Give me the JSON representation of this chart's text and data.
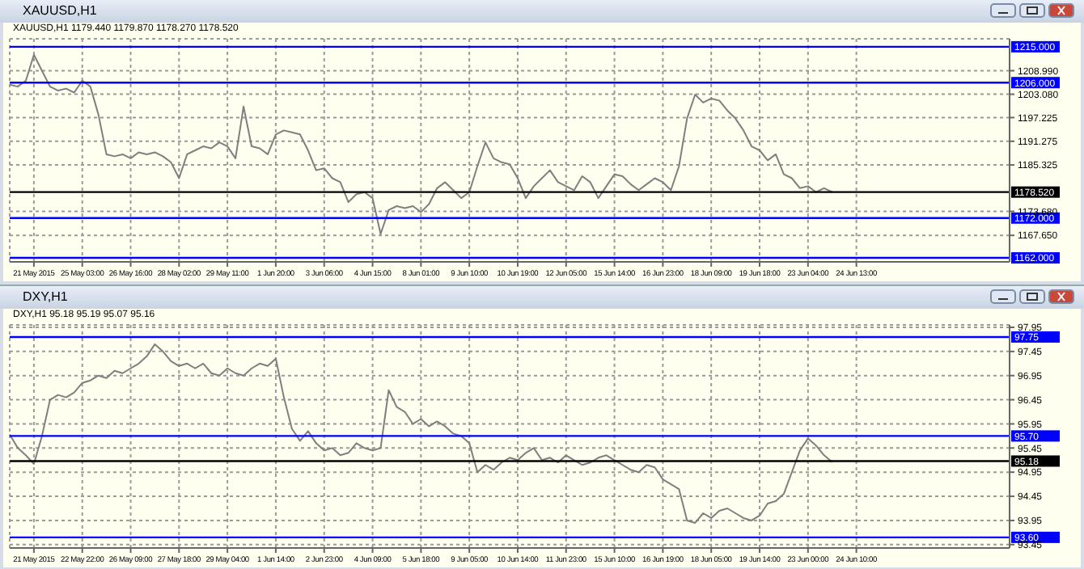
{
  "chart_data": [
    {
      "type": "line",
      "title": "XAUUSD,H1",
      "subtitle": "XAUUSD,H1 1179.440 1179.870 1178.270 1178.520",
      "categories": [
        null,
        null,
        null,
        "21 May 2015",
        null,
        null,
        null,
        null,
        null,
        "25 May 03:00",
        null,
        null,
        null,
        null,
        null,
        "26 May 16:00",
        null,
        null,
        null,
        null,
        null,
        "28 May 02:00",
        null,
        null,
        null,
        null,
        null,
        "29 May 11:00",
        null,
        null,
        null,
        null,
        null,
        "1 Jun 20:00",
        null,
        null,
        null,
        null,
        null,
        "3 Jun 06:00",
        null,
        null,
        null,
        null,
        null,
        "4 Jun 15:00",
        null,
        null,
        null,
        null,
        null,
        "8 Jun 01:00",
        null,
        null,
        null,
        null,
        null,
        "9 Jun 10:00",
        null,
        null,
        null,
        null,
        null,
        "10 Jun 19:00",
        null,
        null,
        null,
        null,
        null,
        "12 Jun 05:00",
        null,
        null,
        null,
        null,
        null,
        "15 Jun 14:00",
        null,
        null,
        null,
        null,
        null,
        "16 Jun 23:00",
        null,
        null,
        null,
        null,
        null,
        "18 Jun 09:00",
        null,
        null,
        null,
        null,
        null,
        "19 Jun 18:00",
        null,
        null,
        null,
        null,
        null,
        "23 Jun 04:00",
        null,
        null,
        null,
        null,
        null,
        "24 Jun 13:00",
        null,
        null,
        null,
        null,
        null,
        null,
        null,
        null,
        null,
        null,
        null,
        null,
        null,
        null,
        null,
        null,
        null,
        null,
        null
      ],
      "values": [
        1205.5,
        1205,
        1206.5,
        1213,
        1209,
        1205,
        1204,
        1204.5,
        1203.5,
        1206.5,
        1205,
        1198,
        1188,
        1187.5,
        1188,
        1187,
        1188.5,
        1188,
        1188.5,
        1187.5,
        1186,
        1182,
        1188,
        1189,
        1190,
        1189.5,
        1191,
        1190,
        1187,
        1200,
        1190,
        1189.5,
        1188,
        1193,
        1194,
        1193.5,
        1193,
        1189,
        1184,
        1184.5,
        1182,
        1181,
        1176,
        1178,
        1178.5,
        1177,
        1168,
        1174,
        1175,
        1174.5,
        1175,
        1173.5,
        1175.5,
        1179.5,
        1181,
        1179,
        1177,
        1178.5,
        1185,
        1191,
        1187,
        1186,
        1185.5,
        1182,
        1177,
        1180,
        1182,
        1184,
        1181,
        1180,
        1179,
        1182.5,
        1181,
        1177,
        1180,
        1183,
        1182.5,
        1180.5,
        1179,
        1180.5,
        1182,
        1181,
        1179,
        1185,
        1197,
        1203,
        1201,
        1202,
        1201.5,
        1199,
        1197,
        1194,
        1190,
        1189,
        1186.5,
        1188,
        1183,
        1182,
        1179.5,
        1180,
        1178.5,
        1179.5,
        1178.5,
        null,
        null,
        null,
        null,
        null,
        null,
        null,
        null,
        null,
        null,
        null,
        null,
        null,
        null,
        null,
        null,
        null,
        null,
        null,
        null,
        null,
        null
      ],
      "color": "#7f7f7f",
      "ylim": [
        1161,
        1217
      ],
      "yticks": [
        {
          "value": 1167.65,
          "label": "1167.650"
        },
        {
          "value": 1173.68,
          "label": "1173.680"
        },
        {
          "value": 1185.325,
          "label": "1185.325"
        },
        {
          "value": 1191.275,
          "label": "1191.275"
        },
        {
          "value": 1197.225,
          "label": "1197.225"
        },
        {
          "value": 1203.08,
          "label": "1203.080"
        },
        {
          "value": 1208.99,
          "label": "1208.990"
        }
      ],
      "ref_lines": [
        {
          "axis": "y",
          "value": 1215,
          "label": "1215.000",
          "color": "#0000ff"
        },
        {
          "axis": "y",
          "value": 1206,
          "label": "1206.000",
          "color": "#0000ff"
        },
        {
          "axis": "y",
          "value": 1178.52,
          "label": "1178.520",
          "color": "#000000"
        },
        {
          "axis": "y",
          "value": 1172,
          "label": "1172.000",
          "color": "#0000ff"
        },
        {
          "axis": "y",
          "value": 1162,
          "label": "1162.000",
          "color": "#0000ff"
        }
      ],
      "grid": true
    },
    {
      "type": "line",
      "title": "DXY,H1",
      "subtitle": "DXY,H1 95.18 95.19 95.07 95.16",
      "categories": [
        null,
        null,
        null,
        "21 May 2015",
        null,
        null,
        null,
        null,
        null,
        "22 May 22:00",
        null,
        null,
        null,
        null,
        null,
        "26 May 09:00",
        null,
        null,
        null,
        null,
        null,
        "27 May 18:00",
        null,
        null,
        null,
        null,
        null,
        "29 May 04:00",
        null,
        null,
        null,
        null,
        null,
        "1 Jun 14:00",
        null,
        null,
        null,
        null,
        null,
        "2 Jun 23:00",
        null,
        null,
        null,
        null,
        null,
        "4 Jun 09:00",
        null,
        null,
        null,
        null,
        null,
        "5 Jun 18:00",
        null,
        null,
        null,
        null,
        null,
        "9 Jun 05:00",
        null,
        null,
        null,
        null,
        null,
        "10 Jun 14:00",
        null,
        null,
        null,
        null,
        null,
        "11 Jun 23:00",
        null,
        null,
        null,
        null,
        null,
        "15 Jun 10:00",
        null,
        null,
        null,
        null,
        null,
        "16 Jun 19:00",
        null,
        null,
        null,
        null,
        null,
        "18 Jun 05:00",
        null,
        null,
        null,
        null,
        null,
        "19 Jun 14:00",
        null,
        null,
        null,
        null,
        null,
        "23 Jun 00:00",
        null,
        null,
        null,
        null,
        null,
        "24 Jun 10:00",
        null,
        null,
        null,
        null,
        null,
        null,
        null,
        null,
        null,
        null,
        null,
        null,
        null,
        null,
        null,
        null,
        null,
        null,
        null
      ],
      "values": [
        95.73,
        95.45,
        95.3,
        95.12,
        95.7,
        96.45,
        96.55,
        96.5,
        96.6,
        96.8,
        96.85,
        96.95,
        96.9,
        97.05,
        97.0,
        97.1,
        97.2,
        97.35,
        97.6,
        97.45,
        97.25,
        97.15,
        97.2,
        97.1,
        97.2,
        97.0,
        96.95,
        97.1,
        97.0,
        96.95,
        97.1,
        97.2,
        97.15,
        97.3,
        96.5,
        95.85,
        95.6,
        95.8,
        95.55,
        95.4,
        95.45,
        95.3,
        95.35,
        95.55,
        95.45,
        95.4,
        95.45,
        96.65,
        96.3,
        96.2,
        95.95,
        96.05,
        95.9,
        96.0,
        95.9,
        95.75,
        95.7,
        95.55,
        94.95,
        95.1,
        95.0,
        95.15,
        95.25,
        95.2,
        95.35,
        95.45,
        95.2,
        95.25,
        95.15,
        95.3,
        95.2,
        95.1,
        95.15,
        95.25,
        95.3,
        95.2,
        95.1,
        95.0,
        94.95,
        95.1,
        95.05,
        94.8,
        94.7,
        94.6,
        93.95,
        93.9,
        94.1,
        94.0,
        94.15,
        94.2,
        94.1,
        94.0,
        93.95,
        94.05,
        94.3,
        94.35,
        94.5,
        94.95,
        95.4,
        95.65,
        95.5,
        95.3,
        95.16,
        null,
        null,
        null,
        null,
        null,
        null,
        null,
        null,
        null,
        null,
        null,
        null,
        null,
        null,
        null,
        null,
        null,
        null,
        null,
        null,
        null,
        null
      ],
      "color": "#7f7f7f",
      "ylim": [
        93.38,
        98.0
      ],
      "yticks": [
        93.45,
        93.95,
        94.45,
        94.95,
        95.45,
        95.95,
        96.45,
        96.95,
        97.45,
        97.95
      ],
      "ref_lines": [
        {
          "axis": "y",
          "value": 97.75,
          "label": "97.75",
          "color": "#0000ff"
        },
        {
          "axis": "y",
          "value": 95.7,
          "label": "95.70",
          "color": "#0000ff"
        },
        {
          "axis": "y",
          "value": 95.18,
          "label": "95.18",
          "color": "#000000"
        },
        {
          "axis": "y",
          "value": 93.6,
          "label": "93.60",
          "color": "#0000ff"
        }
      ],
      "grid": true
    }
  ]
}
